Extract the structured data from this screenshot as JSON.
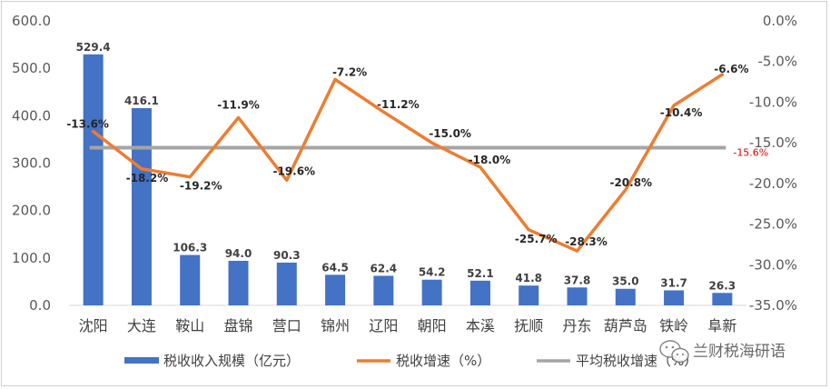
{
  "chart_data": {
    "type": "bar",
    "categories": [
      "沈阳",
      "大连",
      "鞍山",
      "盘锦",
      "营口",
      "锦州",
      "辽阳",
      "朝阳",
      "本溪",
      "抚顺",
      "丹东",
      "葫芦岛",
      "铁岭",
      "阜新"
    ],
    "series": [
      {
        "name": "税收收入规模（亿元）",
        "type": "bar",
        "axis": "left",
        "color": "#4472C4",
        "values": [
          529.4,
          416.1,
          106.3,
          94.0,
          90.3,
          64.5,
          62.4,
          54.2,
          52.1,
          41.8,
          37.8,
          35.0,
          31.7,
          26.3
        ],
        "labels": [
          "529.4",
          "416.1",
          "106.3",
          "94.0",
          "90.3",
          "64.5",
          "62.4",
          "54.2",
          "52.1",
          "41.8",
          "37.8",
          "35.0",
          "31.7",
          "26.3"
        ]
      },
      {
        "name": "税收增速（%）",
        "type": "line",
        "axis": "right",
        "color": "#ED7D31",
        "values": [
          -13.6,
          -18.2,
          -19.2,
          -11.9,
          -19.6,
          -7.2,
          -11.2,
          -15.0,
          -18.0,
          -25.7,
          -28.3,
          -20.8,
          -10.4,
          -6.6
        ],
        "labels": [
          "-13.6%",
          "-18.2%",
          "-19.2%",
          "-11.9%",
          "-19.6%",
          "-7.2%",
          "-11.2%",
          "-15.0%",
          "-18.0%",
          "-25.7%",
          "-28.3%",
          "-20.8%",
          "-10.4%",
          "-6.6%"
        ]
      },
      {
        "name": "平均税收增速（%）",
        "type": "line",
        "axis": "right",
        "color": "#A5A5A5",
        "value": -15.6,
        "label": "-15.6%",
        "label_color": "#E00000"
      }
    ],
    "y_left": {
      "range": [
        0,
        600
      ],
      "ticks": [
        0,
        100,
        200,
        300,
        400,
        500,
        600
      ],
      "tick_labels": [
        "0.0",
        "100.0",
        "200.0",
        "300.0",
        "400.0",
        "500.0",
        "600.0"
      ]
    },
    "y_right": {
      "range": [
        -35,
        0
      ],
      "ticks": [
        0,
        -5,
        -10,
        -15,
        -20,
        -25,
        -30,
        -35
      ],
      "tick_labels": [
        "0.0%",
        "-5.0%",
        "-10.0%",
        "-15.0%",
        "-20.0%",
        "-25.0%",
        "-30.0%",
        "-35.0%"
      ]
    },
    "grid": false,
    "legend_position": "bottom"
  },
  "watermark": {
    "text": "兰财税海研语",
    "icon": "wechat-icon"
  }
}
